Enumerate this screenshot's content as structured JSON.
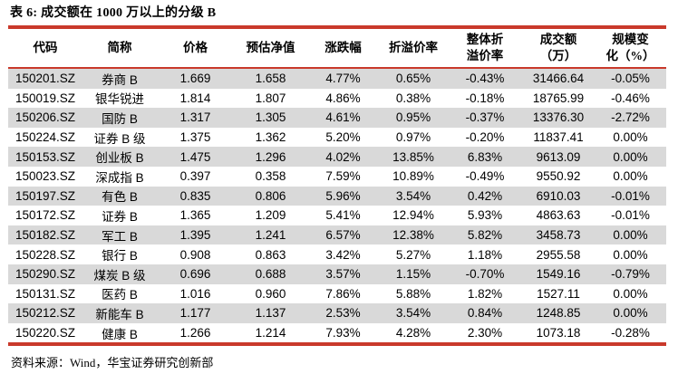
{
  "colors": {
    "accent_red": "#C9392B",
    "stripe_gray": "#D9D9D9",
    "text": "#000000"
  },
  "title": "表 6:  成交额在 1000 万以上的分级 B",
  "table": {
    "headers": [
      "代码",
      "简称",
      "价格",
      "预估净值",
      "涨跌幅",
      "折溢价率",
      "整体折\n溢价率",
      "成交额\n（万）",
      "规模变\n化（%）"
    ],
    "rows": [
      [
        "150201.SZ",
        "券商 B",
        "1.669",
        "1.658",
        "4.77%",
        "0.65%",
        "-0.43%",
        "31466.64",
        "-0.05%"
      ],
      [
        "150019.SZ",
        "银华锐进",
        "1.814",
        "1.807",
        "4.86%",
        "0.38%",
        "-0.18%",
        "18765.99",
        "-0.46%"
      ],
      [
        "150206.SZ",
        "国防 B",
        "1.317",
        "1.305",
        "4.61%",
        "0.95%",
        "-0.37%",
        "13376.30",
        "-2.72%"
      ],
      [
        "150224.SZ",
        "证券 B 级",
        "1.375",
        "1.362",
        "5.20%",
        "0.97%",
        "-0.20%",
        "11837.41",
        "0.00%"
      ],
      [
        "150153.SZ",
        "创业板 B",
        "1.475",
        "1.296",
        "4.02%",
        "13.85%",
        "6.83%",
        "9613.09",
        "0.00%"
      ],
      [
        "150023.SZ",
        "深成指 B",
        "0.397",
        "0.358",
        "7.59%",
        "10.89%",
        "-0.49%",
        "9550.92",
        "0.00%"
      ],
      [
        "150197.SZ",
        "有色 B",
        "0.835",
        "0.806",
        "5.96%",
        "3.54%",
        "0.42%",
        "6910.03",
        "-0.01%"
      ],
      [
        "150172.SZ",
        "证券 B",
        "1.365",
        "1.209",
        "5.41%",
        "12.94%",
        "5.93%",
        "4863.63",
        "-0.01%"
      ],
      [
        "150182.SZ",
        "军工 B",
        "1.395",
        "1.241",
        "6.57%",
        "12.38%",
        "5.82%",
        "3458.73",
        "0.00%"
      ],
      [
        "150228.SZ",
        "银行 B",
        "0.908",
        "0.863",
        "3.42%",
        "5.27%",
        "1.18%",
        "2955.58",
        "0.00%"
      ],
      [
        "150290.SZ",
        "煤炭 B 级",
        "0.696",
        "0.688",
        "3.57%",
        "1.15%",
        "-0.70%",
        "1549.16",
        "-0.79%"
      ],
      [
        "150131.SZ",
        "医药 B",
        "1.016",
        "0.960",
        "7.86%",
        "5.88%",
        "1.82%",
        "1527.11",
        "0.00%"
      ],
      [
        "150212.SZ",
        "新能车 B",
        "1.177",
        "1.137",
        "2.53%",
        "3.54%",
        "0.84%",
        "1248.85",
        "0.00%"
      ],
      [
        "150220.SZ",
        "健康 B",
        "1.266",
        "1.214",
        "7.93%",
        "4.28%",
        "2.30%",
        "1073.18",
        "-0.28%"
      ]
    ]
  },
  "footer": {
    "source_label": "资料来源：",
    "source_text": "Wind，华宝证券研究创新部"
  }
}
